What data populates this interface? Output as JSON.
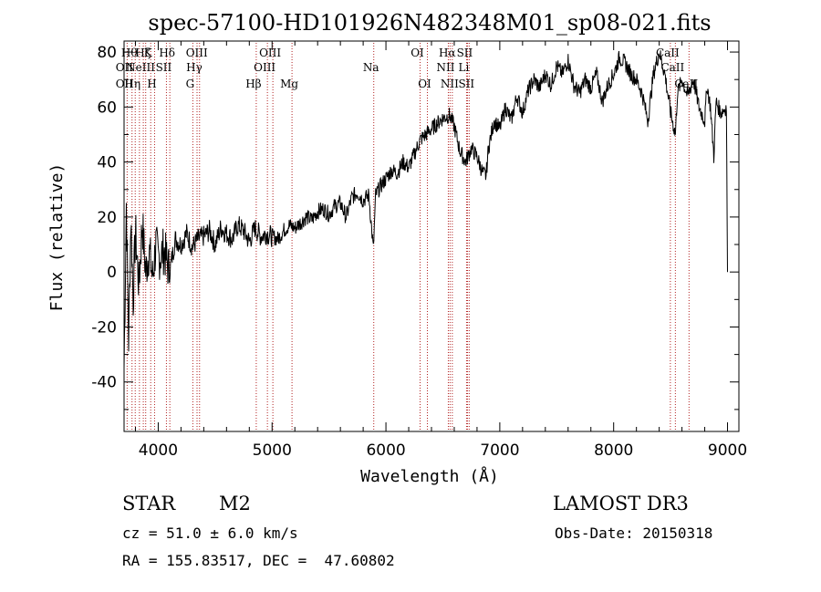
{
  "chart_data": {
    "type": "line",
    "title": "spec-57100-HD101926N482348M01_sp08-021.fits",
    "xlabel": "Wavelength (Å)",
    "ylabel": "Flux (relative)",
    "xlim": [
      3700,
      9100
    ],
    "ylim": [
      -58,
      84
    ],
    "xticks": [
      4000,
      5000,
      6000,
      7000,
      8000,
      9000
    ],
    "yticks": [
      -40,
      -20,
      0,
      20,
      40,
      60,
      80
    ],
    "series": [
      {
        "name": "flux",
        "x": [
          3700,
          3720,
          3740,
          3760,
          3780,
          3800,
          3830,
          3860,
          3890,
          3920,
          3950,
          3980,
          4000,
          4050,
          4100,
          4150,
          4200,
          4250,
          4300,
          4350,
          4400,
          4450,
          4500,
          4550,
          4600,
          4650,
          4700,
          4750,
          4800,
          4850,
          4900,
          4950,
          5000,
          5050,
          5100,
          5150,
          5200,
          5250,
          5300,
          5350,
          5400,
          5450,
          5500,
          5550,
          5600,
          5650,
          5700,
          5750,
          5800,
          5850,
          5890,
          5910,
          5950,
          6000,
          6050,
          6100,
          6150,
          6200,
          6250,
          6300,
          6350,
          6400,
          6450,
          6500,
          6560,
          6600,
          6650,
          6700,
          6750,
          6800,
          6850,
          6880,
          6900,
          6950,
          7000,
          7050,
          7100,
          7150,
          7200,
          7250,
          7300,
          7350,
          7400,
          7450,
          7500,
          7550,
          7600,
          7650,
          7700,
          7750,
          7800,
          7850,
          7900,
          7950,
          8000,
          8050,
          8100,
          8150,
          8200,
          8250,
          8300,
          8350,
          8400,
          8450,
          8500,
          8542,
          8560,
          8600,
          8650,
          8700,
          8750,
          8800,
          8820,
          8850,
          8880,
          8900,
          8940,
          8990,
          9000
        ],
        "y": [
          -35,
          25,
          -25,
          20,
          -10,
          15,
          -5,
          18,
          0,
          8,
          -2,
          10,
          5,
          8,
          0,
          12,
          10,
          14,
          9,
          12,
          13,
          15,
          10,
          16,
          14,
          12,
          17,
          15,
          11,
          16,
          13,
          14,
          13,
          12,
          15,
          17,
          16,
          18,
          20,
          19,
          22,
          23,
          21,
          24,
          25,
          20,
          27,
          29,
          26,
          28,
          8,
          28,
          31,
          34,
          37,
          36,
          40,
          38,
          43,
          48,
          50,
          52,
          54,
          56,
          57,
          53,
          44,
          40,
          45,
          42,
          36,
          35,
          45,
          55,
          52,
          60,
          55,
          64,
          58,
          66,
          70,
          67,
          72,
          68,
          75,
          72,
          77,
          68,
          65,
          70,
          67,
          72,
          62,
          68,
          72,
          78,
          76,
          72,
          70,
          65,
          55,
          72,
          80,
          72,
          58,
          50,
          65,
          70,
          64,
          70,
          60,
          55,
          68,
          60,
          42,
          62,
          58,
          60,
          0
        ]
      }
    ],
    "line_markers": [
      {
        "x": 3727,
        "row1": "",
        "row2": "OII",
        "row3": "OII"
      },
      {
        "x": 3770,
        "row1": "Hθ",
        "row2": "",
        "row3": ""
      },
      {
        "x": 3798,
        "row1": "",
        "row2": "",
        "row3": "Hη"
      },
      {
        "x": 3835,
        "row1": "",
        "row2": "",
        "row3": ""
      },
      {
        "x": 3869,
        "row1": "",
        "row2": "NeIII",
        "row3": ""
      },
      {
        "x": 3890,
        "row1": "Hζ",
        "row2": "",
        "row3": ""
      },
      {
        "x": 3934,
        "row1": "K",
        "row2": "",
        "row3": ""
      },
      {
        "x": 3968,
        "row1": "",
        "row2": "",
        "row3": "H"
      },
      {
        "x": 4072,
        "row1": "",
        "row2": "SII",
        "row3": ""
      },
      {
        "x": 4102,
        "row1": "Hδ",
        "row2": "",
        "row3": ""
      },
      {
        "x": 4304,
        "row1": "",
        "row2": "",
        "row3": "G"
      },
      {
        "x": 4341,
        "row1": "",
        "row2": "Hγ",
        "row3": ""
      },
      {
        "x": 4363,
        "row1": "OIII",
        "row2": "",
        "row3": ""
      },
      {
        "x": 4861,
        "row1": "",
        "row2": "",
        "row3": "Hβ"
      },
      {
        "x": 4959,
        "row1": "",
        "row2": "OIII",
        "row3": ""
      },
      {
        "x": 5007,
        "row1": "OIII",
        "row2": "",
        "row3": ""
      },
      {
        "x": 5175,
        "row1": "",
        "row2": "",
        "row3": "Mg"
      },
      {
        "x": 5893,
        "row1": "",
        "row2": "Na",
        "row3": ""
      },
      {
        "x": 6300,
        "row1": "OI",
        "row2": "",
        "row3": ""
      },
      {
        "x": 6364,
        "row1": "",
        "row2": "",
        "row3": "OI"
      },
      {
        "x": 6548,
        "row1": "",
        "row2": "NII",
        "row3": ""
      },
      {
        "x": 6563,
        "row1": "Hα",
        "row2": "",
        "row3": ""
      },
      {
        "x": 6583,
        "row1": "",
        "row2": "",
        "row3": "NII"
      },
      {
        "x": 6708,
        "row1": "",
        "row2": "Li",
        "row3": ""
      },
      {
        "x": 6716,
        "row1": "SII",
        "row2": "",
        "row3": ""
      },
      {
        "x": 6731,
        "row1": "",
        "row2": "",
        "row3": "SII"
      },
      {
        "x": 8498,
        "row1": "CaII",
        "row2": "",
        "row3": ""
      },
      {
        "x": 8542,
        "row1": "",
        "row2": "CaII",
        "row3": ""
      },
      {
        "x": 8662,
        "row1": "",
        "row2": "",
        "row3": "CaII"
      }
    ]
  },
  "info": {
    "object_class": "STAR",
    "subclass": "M2",
    "survey": "LAMOST DR3",
    "cz": "cz = 51.0 ± 6.0 km/s",
    "obs_date": "Obs-Date: 20150318",
    "coords": "RA = 155.83517, DEC =  47.60802"
  },
  "colors": {
    "line_marker": "#b22222",
    "spectrum": "#000000"
  }
}
